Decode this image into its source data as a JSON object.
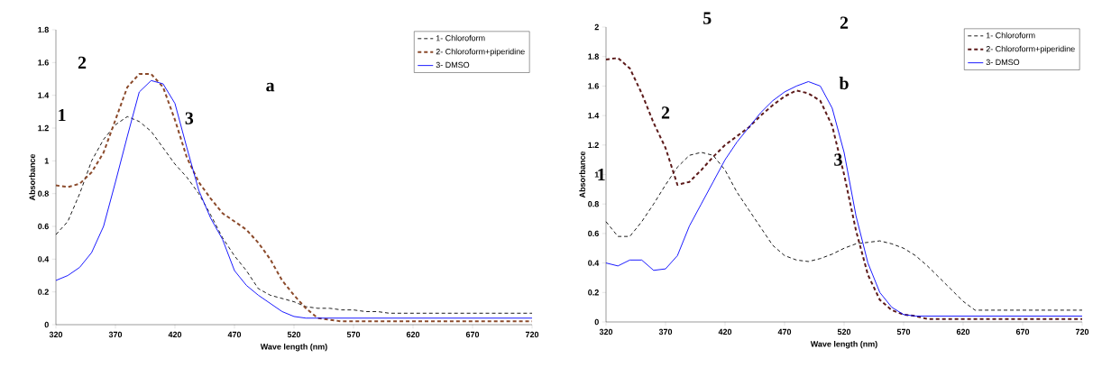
{
  "chart_data": [
    {
      "type": "line",
      "xlabel": "Wave length (nm)",
      "ylabel": "Absorbance",
      "xlim": [
        320,
        720
      ],
      "ylim": [
        0,
        1.8
      ],
      "xticks": [
        320,
        370,
        420,
        470,
        520,
        570,
        620,
        670,
        720
      ],
      "yticks": [
        0,
        0.2,
        0.4,
        0.6,
        0.8,
        1,
        1.2,
        1.4,
        1.6,
        1.8
      ],
      "grid": false,
      "legend": "top right",
      "marker": "none",
      "x": [
        320,
        330,
        340,
        350,
        360,
        370,
        380,
        390,
        400,
        410,
        420,
        430,
        440,
        450,
        460,
        470,
        480,
        490,
        500,
        510,
        520,
        530,
        540,
        550,
        560,
        570,
        580,
        590,
        600,
        720
      ],
      "series": [
        {
          "name": "1- Chloroform",
          "color": "#000000",
          "line_style": "dashed",
          "values": [
            0.55,
            0.63,
            0.8,
            1.0,
            1.13,
            1.22,
            1.27,
            1.24,
            1.18,
            1.08,
            0.98,
            0.9,
            0.8,
            0.67,
            0.53,
            0.42,
            0.33,
            0.22,
            0.18,
            0.16,
            0.14,
            0.11,
            0.1,
            0.1,
            0.09,
            0.09,
            0.08,
            0.08,
            0.07,
            0.07
          ]
        },
        {
          "name": "2- Chloroform+piperidine",
          "color": "#8b4a2b",
          "line_style": "dashed",
          "values": [
            0.85,
            0.84,
            0.86,
            0.93,
            1.05,
            1.25,
            1.45,
            1.53,
            1.53,
            1.45,
            1.25,
            1.02,
            0.87,
            0.77,
            0.68,
            0.63,
            0.58,
            0.5,
            0.4,
            0.27,
            0.18,
            0.1,
            0.04,
            0.03,
            0.02,
            0.02,
            0.02,
            0.02,
            0.02,
            0.02
          ]
        },
        {
          "name": "3- DMSO",
          "color": "#0000ff",
          "line_style": "solid",
          "values": [
            0.27,
            0.3,
            0.35,
            0.44,
            0.6,
            0.87,
            1.15,
            1.42,
            1.49,
            1.47,
            1.35,
            1.08,
            0.82,
            0.65,
            0.52,
            0.33,
            0.24,
            0.18,
            0.13,
            0.08,
            0.05,
            0.04,
            0.04,
            0.04,
            0.04,
            0.04,
            0.04,
            0.04,
            0.04,
            0.04
          ]
        }
      ],
      "annotations": [
        "a",
        "1",
        "2",
        "3"
      ]
    },
    {
      "type": "line",
      "xlabel": "Wave length (nm)",
      "ylabel": "Absorbance",
      "xlim": [
        320,
        720
      ],
      "ylim": [
        0,
        2
      ],
      "xticks": [
        320,
        370,
        420,
        470,
        520,
        570,
        620,
        670,
        720
      ],
      "yticks": [
        0,
        0.2,
        0.4,
        0.6,
        0.8,
        1,
        1.2,
        1.4,
        1.6,
        1.8,
        2
      ],
      "grid": false,
      "legend": "top right",
      "marker": "none",
      "x": [
        320,
        330,
        340,
        350,
        360,
        370,
        380,
        390,
        400,
        410,
        420,
        430,
        440,
        450,
        460,
        470,
        480,
        490,
        500,
        510,
        520,
        530,
        540,
        550,
        560,
        570,
        580,
        590,
        600,
        610,
        620,
        630,
        640,
        720
      ],
      "series": [
        {
          "name": "1- Chloroform",
          "color": "#000000",
          "line_style": "dashed",
          "values": [
            0.68,
            0.58,
            0.58,
            0.68,
            0.8,
            0.93,
            1.05,
            1.13,
            1.15,
            1.13,
            1.03,
            0.88,
            0.76,
            0.64,
            0.52,
            0.45,
            0.42,
            0.41,
            0.43,
            0.46,
            0.5,
            0.53,
            0.54,
            0.55,
            0.53,
            0.5,
            0.45,
            0.38,
            0.3,
            0.22,
            0.14,
            0.08,
            0.08,
            0.08
          ]
        },
        {
          "name": "2- Chloroform+piperidine",
          "color": "#5c1a1a",
          "line_style": "dashed",
          "values": [
            1.78,
            1.79,
            1.72,
            1.55,
            1.35,
            1.18,
            0.93,
            0.95,
            1.03,
            1.12,
            1.2,
            1.26,
            1.32,
            1.4,
            1.47,
            1.53,
            1.57,
            1.55,
            1.5,
            1.33,
            1.0,
            0.62,
            0.32,
            0.15,
            0.08,
            0.05,
            0.04,
            0.02,
            0.02,
            0.02,
            0.02,
            0.02,
            0.02,
            0.02
          ]
        },
        {
          "name": "3- DMSO",
          "color": "#0000ff",
          "line_style": "solid",
          "values": [
            0.4,
            0.38,
            0.42,
            0.42,
            0.35,
            0.36,
            0.45,
            0.65,
            0.8,
            0.95,
            1.1,
            1.22,
            1.32,
            1.42,
            1.5,
            1.56,
            1.6,
            1.63,
            1.6,
            1.45,
            1.15,
            0.72,
            0.4,
            0.2,
            0.1,
            0.05,
            0.04,
            0.04,
            0.04,
            0.04,
            0.04,
            0.04,
            0.04,
            0.04
          ]
        }
      ],
      "annotations": [
        "b",
        "1",
        "2",
        "3",
        "5",
        "2"
      ]
    }
  ]
}
